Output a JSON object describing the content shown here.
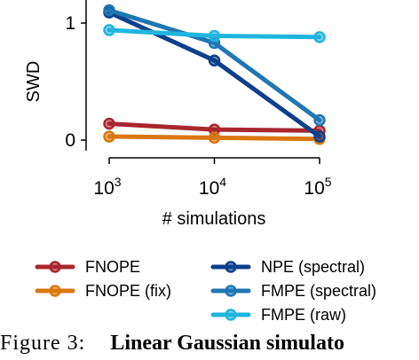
{
  "chart_data": {
    "type": "line",
    "ylabel": "SWD",
    "xlabel": "# simulations",
    "xscale": "log",
    "x": [
      1000,
      10000,
      100000
    ],
    "x_ticks": [
      {
        "value": 1000,
        "base": "10",
        "exp": "3"
      },
      {
        "value": 10000,
        "base": "10",
        "exp": "4"
      },
      {
        "value": 100000,
        "base": "10",
        "exp": "5"
      }
    ],
    "y_ticks": [
      {
        "value": 0,
        "label": "0"
      },
      {
        "value": 1,
        "label": "1"
      }
    ],
    "ylim": [
      -0.06,
      1.22
    ],
    "grid": false,
    "legend_position": "bottom",
    "series": [
      {
        "name": "FNOPE",
        "color": "#A8262F",
        "values": [
          0.14,
          0.09,
          0.08
        ]
      },
      {
        "name": "FNOPE (fix)",
        "color": "#D9770E",
        "values": [
          0.03,
          0.02,
          0.01
        ]
      },
      {
        "name": "NPE (spectral)",
        "color": "#0E3F8C",
        "values": [
          1.09,
          0.68,
          0.03
        ]
      },
      {
        "name": "FMPE (spectral)",
        "color": "#1F77B4",
        "values": [
          1.11,
          0.83,
          0.17
        ]
      },
      {
        "name": "FMPE (raw)",
        "color": "#1FB5DE",
        "values": [
          0.94,
          0.89,
          0.88
        ]
      }
    ]
  },
  "caption": {
    "label": "Figure  3:",
    "title": "Linear  Gaussian  simulato"
  }
}
